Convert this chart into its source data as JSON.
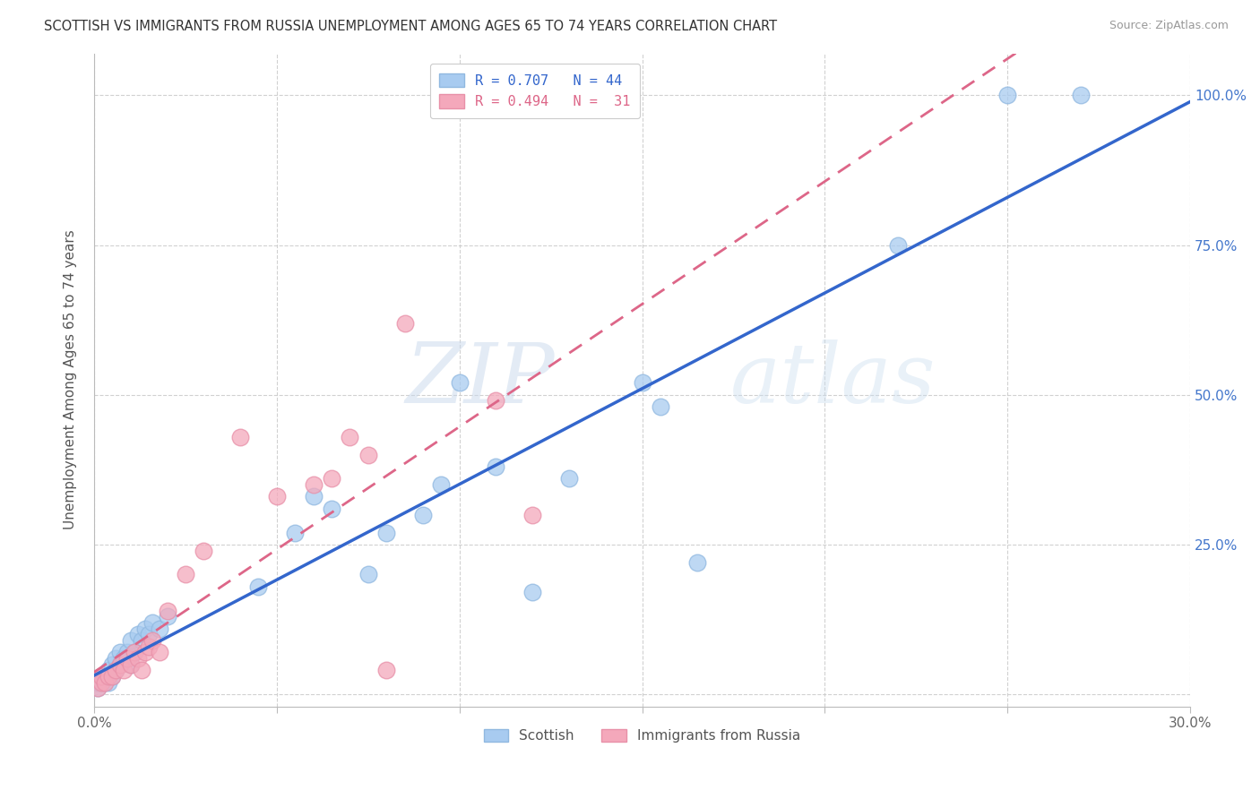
{
  "title": "SCOTTISH VS IMMIGRANTS FROM RUSSIA UNEMPLOYMENT AMONG AGES 65 TO 74 YEARS CORRELATION CHART",
  "source": "Source: ZipAtlas.com",
  "ylabel": "Unemployment Among Ages 65 to 74 years",
  "xlim": [
    0.0,
    0.3
  ],
  "ylim": [
    -0.02,
    1.07
  ],
  "x_ticks": [
    0.0,
    0.05,
    0.1,
    0.15,
    0.2,
    0.25,
    0.3
  ],
  "x_tick_labels": [
    "0.0%",
    "",
    "",
    "",
    "",
    "",
    "30.0%"
  ],
  "y_ticks": [
    0.0,
    0.25,
    0.5,
    0.75,
    1.0
  ],
  "y_tick_labels": [
    "",
    "25.0%",
    "50.0%",
    "75.0%",
    "100.0%"
  ],
  "scottish_R": 0.707,
  "scottish_N": 44,
  "russia_R": 0.494,
  "russia_N": 31,
  "scottish_color": "#A8CBF0",
  "russia_color": "#F4A8BB",
  "scottish_edge_color": "#90B8E0",
  "russia_edge_color": "#E890A8",
  "trendline_scottish_color": "#3366CC",
  "trendline_russia_color": "#DD6688",
  "background_color": "#FFFFFF",
  "watermark_zip": "ZIP",
  "watermark_atlas": "atlas",
  "scottish_x": [
    0.001,
    0.001,
    0.002,
    0.002,
    0.003,
    0.003,
    0.004,
    0.004,
    0.005,
    0.005,
    0.006,
    0.006,
    0.007,
    0.007,
    0.008,
    0.009,
    0.01,
    0.01,
    0.011,
    0.012,
    0.013,
    0.014,
    0.015,
    0.016,
    0.018,
    0.02,
    0.045,
    0.055,
    0.06,
    0.065,
    0.075,
    0.08,
    0.09,
    0.095,
    0.1,
    0.11,
    0.12,
    0.13,
    0.15,
    0.155,
    0.165,
    0.22,
    0.25,
    0.27
  ],
  "scottish_y": [
    0.01,
    0.02,
    0.02,
    0.03,
    0.02,
    0.03,
    0.02,
    0.04,
    0.03,
    0.05,
    0.04,
    0.06,
    0.05,
    0.07,
    0.06,
    0.07,
    0.05,
    0.09,
    0.07,
    0.1,
    0.09,
    0.11,
    0.1,
    0.12,
    0.11,
    0.13,
    0.18,
    0.27,
    0.33,
    0.31,
    0.2,
    0.27,
    0.3,
    0.35,
    0.52,
    0.38,
    0.17,
    0.36,
    0.52,
    0.48,
    0.22,
    0.75,
    1.0,
    1.0
  ],
  "russia_x": [
    0.001,
    0.002,
    0.002,
    0.003,
    0.004,
    0.005,
    0.006,
    0.007,
    0.008,
    0.009,
    0.01,
    0.011,
    0.012,
    0.013,
    0.014,
    0.015,
    0.016,
    0.018,
    0.02,
    0.025,
    0.03,
    0.04,
    0.05,
    0.06,
    0.065,
    0.07,
    0.075,
    0.08,
    0.085,
    0.11,
    0.12
  ],
  "russia_y": [
    0.01,
    0.02,
    0.03,
    0.02,
    0.03,
    0.03,
    0.04,
    0.05,
    0.04,
    0.06,
    0.05,
    0.07,
    0.06,
    0.04,
    0.07,
    0.08,
    0.09,
    0.07,
    0.14,
    0.2,
    0.24,
    0.43,
    0.33,
    0.35,
    0.36,
    0.43,
    0.4,
    0.04,
    0.62,
    0.49,
    0.3
  ]
}
